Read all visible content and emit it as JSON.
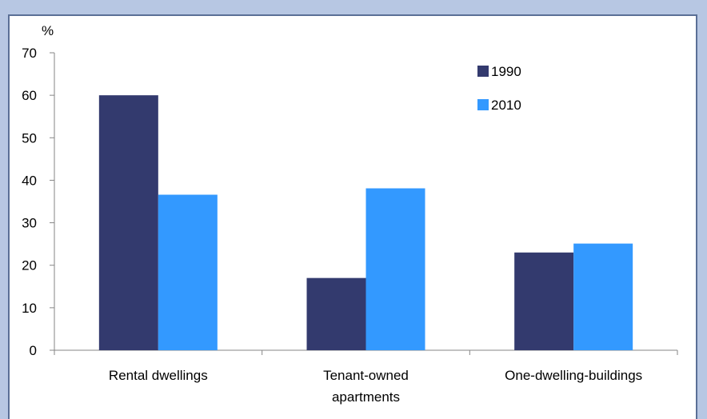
{
  "chart_data": {
    "type": "bar",
    "title": "",
    "ylabel": "%",
    "xlabel": "",
    "ylim": [
      0,
      70
    ],
    "yticks": [
      0,
      10,
      20,
      30,
      40,
      50,
      60,
      70
    ],
    "categories": [
      [
        "Rental dwellings"
      ],
      [
        "Tenant-owned",
        "apartments"
      ],
      [
        "One-dwelling-buildings"
      ]
    ],
    "series": [
      {
        "name": "1990",
        "color": "#333a6e",
        "values": [
          60,
          17,
          23
        ]
      },
      {
        "name": "2010",
        "color": "#3399ff",
        "values": [
          36.6,
          38.1,
          25.1
        ]
      }
    ],
    "legend_position": "top-right",
    "grid": false
  }
}
